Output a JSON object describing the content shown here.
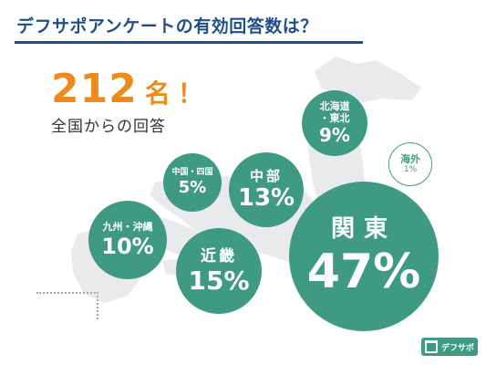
{
  "title": "デフサポアンケートの有効回答数は？",
  "total": {
    "number": "212",
    "unit": "名",
    "mark": "！"
  },
  "subcaption": "全国からの回答",
  "regions": {
    "hokkaido_tohoku": {
      "label_line1": "北海道",
      "label_line2": "・東北",
      "percent": "9%"
    },
    "kanto": {
      "label": "関東",
      "percent": "47%"
    },
    "chubu": {
      "label": "中部",
      "percent": "13%"
    },
    "kinki": {
      "label": "近畿",
      "percent": "15%"
    },
    "chugoku_shikoku": {
      "label": "中国・四国",
      "percent": "5%"
    },
    "kyushu_okinawa": {
      "label": "九州・沖縄",
      "percent": "10%"
    },
    "overseas": {
      "label": "海外",
      "percent": "1%"
    }
  },
  "logo": {
    "text": "デフサポ"
  },
  "colors": {
    "title": "#1f4f86",
    "accent_orange": "#ee8a1c",
    "bubble_green": "#3e9a80",
    "map_gray": "#e8eaeb"
  },
  "icons": {
    "logo_mark": "logo-mark-icon",
    "map": "japan-map-silhouette"
  }
}
